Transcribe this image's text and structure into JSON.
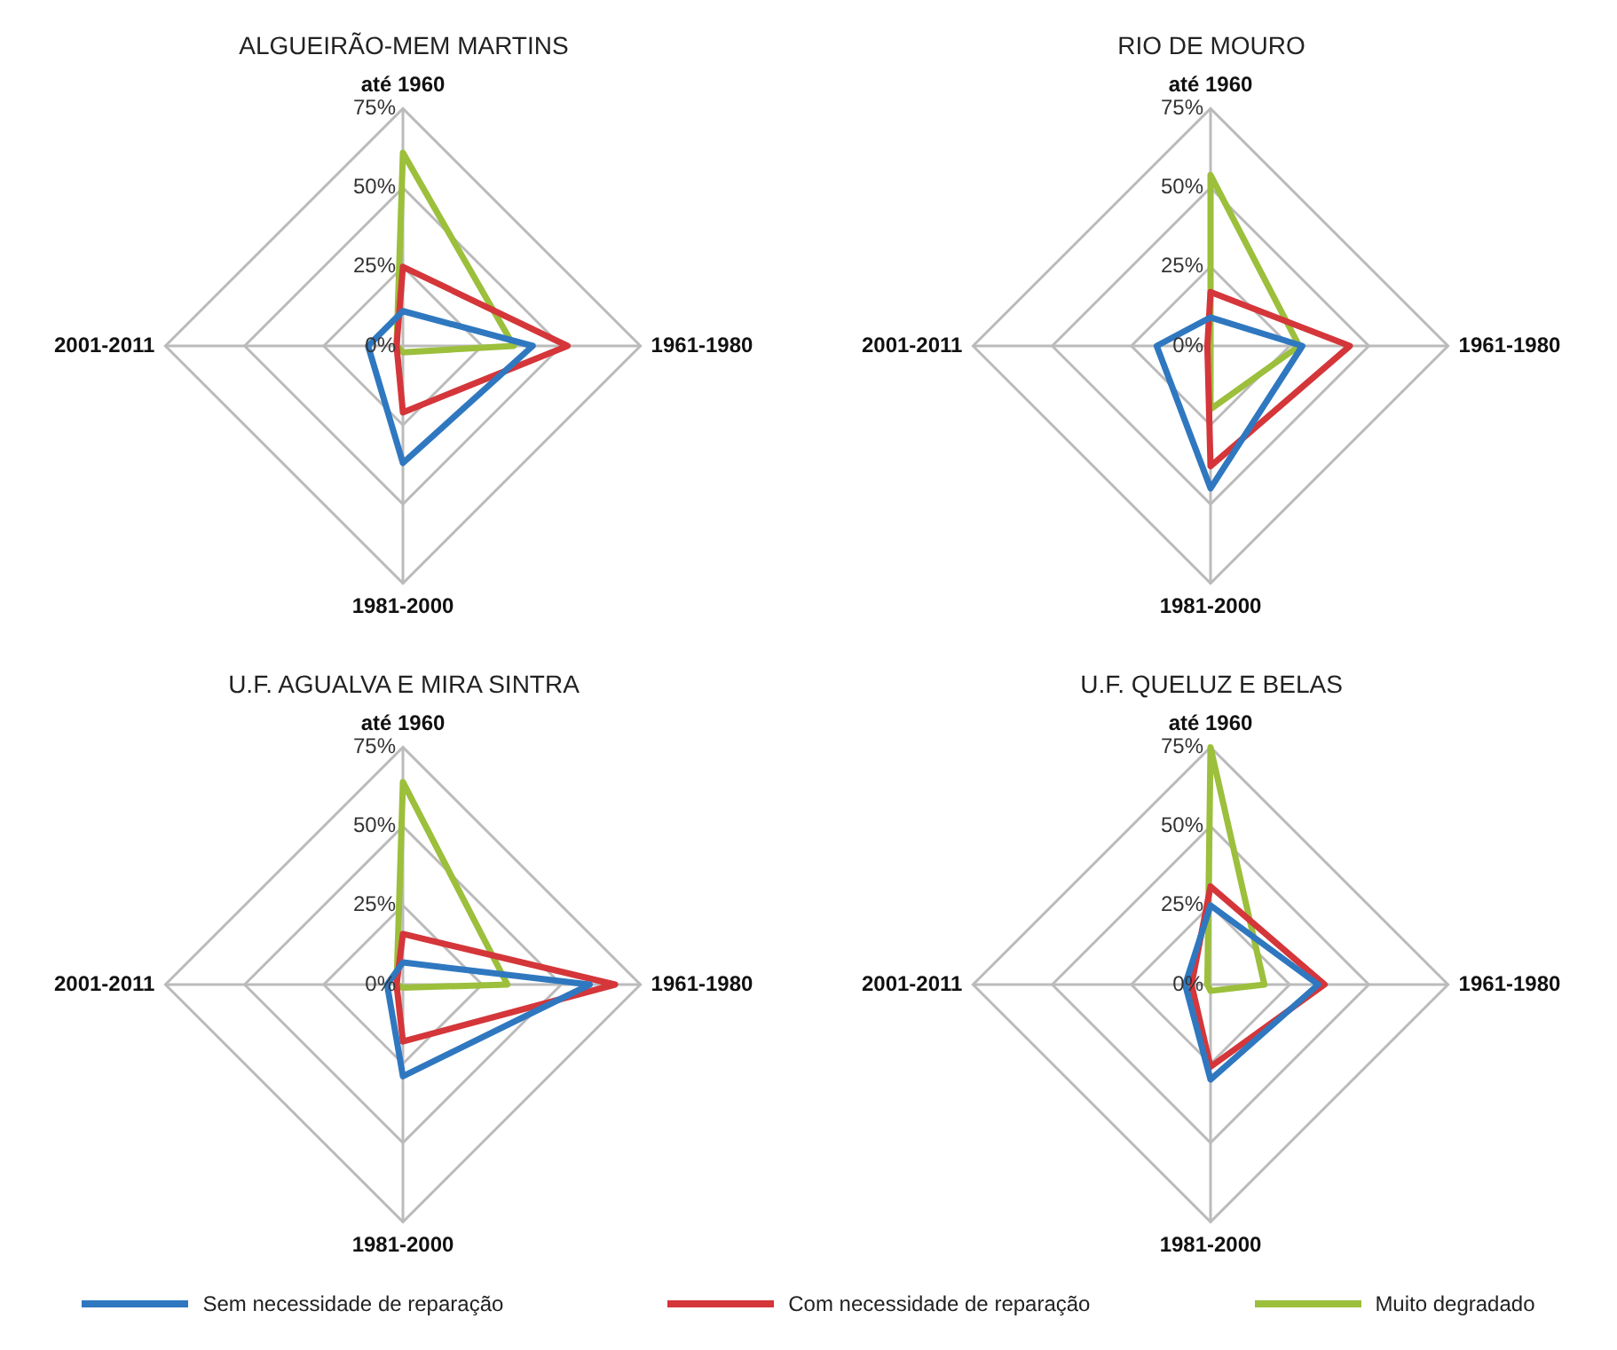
{
  "chart_data": [
    {
      "type": "radar",
      "title": "ALGUEIRÃO-MEM MARTINS",
      "categories": [
        "até 1960",
        "1961-1980",
        "1981-2000",
        "2001-2011"
      ],
      "ylim": [
        0,
        75
      ],
      "yticks": [
        {
          "value": 0,
          "label": "0%"
        },
        {
          "value": 25,
          "label": "25%"
        },
        {
          "value": 50,
          "label": "50%"
        },
        {
          "value": 75,
          "label": "75%"
        }
      ],
      "grid": true,
      "marker": "none",
      "legend": "bottom",
      "series": [
        {
          "name": "Sem necessidade de reparação",
          "color": "#2f78c0",
          "values": [
            11,
            41,
            37,
            11
          ]
        },
        {
          "name": "Com necessidade de reparação",
          "color": "#d4363a",
          "values": [
            25,
            52,
            21,
            2
          ]
        },
        {
          "name": "Muito degradado",
          "color": "#9cbf3c",
          "values": [
            61,
            35,
            2,
            2
          ]
        }
      ]
    },
    {
      "type": "radar",
      "title": "RIO DE MOURO",
      "categories": [
        "até 1960",
        "1961-1980",
        "1981-2000",
        "2001-2011"
      ],
      "ylim": [
        0,
        75
      ],
      "yticks": [
        {
          "value": 0,
          "label": "0%"
        },
        {
          "value": 25,
          "label": "25%"
        },
        {
          "value": 50,
          "label": "50%"
        },
        {
          "value": 75,
          "label": "75%"
        }
      ],
      "grid": true,
      "marker": "none",
      "series": [
        {
          "color": "#2f78c0",
          "values": [
            9,
            29,
            45,
            17
          ]
        },
        {
          "color": "#d4363a",
          "values": [
            17,
            44,
            38,
            1
          ]
        },
        {
          "color": "#9cbf3c",
          "values": [
            54,
            28,
            20,
            0
          ]
        }
      ]
    },
    {
      "type": "radar",
      "title": "U.F. AGUALVA E MIRA SINTRA",
      "categories": [
        "até 1960",
        "1961-1980",
        "1981-2000",
        "2001-2011"
      ],
      "ylim": [
        0,
        75
      ],
      "yticks": [
        {
          "value": 0,
          "label": "0%"
        },
        {
          "value": 25,
          "label": "25%"
        },
        {
          "value": 50,
          "label": "50%"
        },
        {
          "value": 75,
          "label": "75%"
        }
      ],
      "grid": true,
      "marker": "none",
      "series": [
        {
          "color": "#2f78c0",
          "values": [
            7,
            59,
            29,
            5
          ]
        },
        {
          "color": "#d4363a",
          "values": [
            16,
            67,
            18,
            2
          ]
        },
        {
          "color": "#9cbf3c",
          "values": [
            64,
            33,
            1,
            2
          ]
        }
      ]
    },
    {
      "type": "radar",
      "title": "U.F. QUELUZ E BELAS",
      "categories": [
        "até 1960",
        "1961-1980",
        "1981-2000",
        "2001-2011"
      ],
      "ylim": [
        0,
        75
      ],
      "yticks": [
        {
          "value": 0,
          "label": "0%"
        },
        {
          "value": 25,
          "label": "25%"
        },
        {
          "value": 50,
          "label": "50%"
        },
        {
          "value": 75,
          "label": "75%"
        }
      ],
      "grid": true,
      "marker": "none",
      "series": [
        {
          "color": "#2f78c0",
          "values": [
            25,
            34,
            30,
            8
          ]
        },
        {
          "color": "#d4363a",
          "values": [
            31,
            36,
            26,
            6
          ]
        },
        {
          "color": "#9cbf3c",
          "values": [
            75,
            17,
            2,
            1
          ]
        }
      ]
    }
  ]
}
